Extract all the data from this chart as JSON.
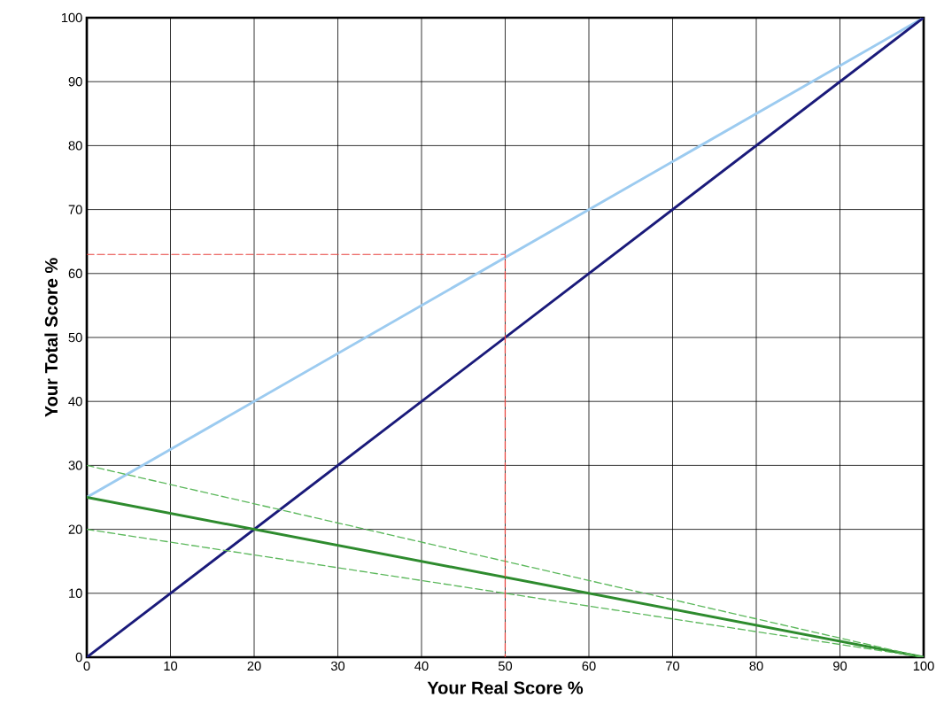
{
  "chart_data": {
    "type": "line",
    "xlabel": "Your Real Score %",
    "ylabel": "Your Total Score %",
    "xlim": [
      0,
      100
    ],
    "ylim": [
      0,
      100
    ],
    "xticks": [
      0,
      10,
      20,
      30,
      40,
      50,
      60,
      70,
      80,
      90,
      100
    ],
    "yticks": [
      0,
      10,
      20,
      30,
      40,
      50,
      60,
      70,
      80,
      90,
      100
    ],
    "grid": true,
    "series": [
      {
        "color": "#9ccbf0",
        "x": [
          0,
          100
        ],
        "values": [
          25,
          100
        ],
        "line_style": "solid"
      },
      {
        "color": "#1a1a7a",
        "x": [
          0,
          100
        ],
        "values": [
          0,
          100
        ],
        "line_style": "solid"
      },
      {
        "color": "#2e8b2e",
        "x": [
          0,
          100
        ],
        "values": [
          25,
          0
        ],
        "line_style": "solid"
      },
      {
        "color": "#5cb85c",
        "x": [
          0,
          100
        ],
        "values": [
          30,
          0
        ],
        "line_style": "dashed"
      },
      {
        "color": "#5cb85c",
        "x": [
          0,
          100
        ],
        "values": [
          20,
          0
        ],
        "line_style": "dashed"
      },
      {
        "color": "#e8413c",
        "x": [
          0,
          50,
          50
        ],
        "values": [
          63,
          63,
          0
        ],
        "line_style": "dashed"
      }
    ]
  }
}
